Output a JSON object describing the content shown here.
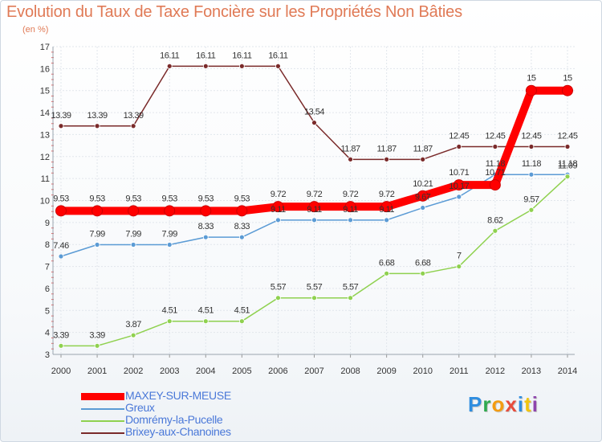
{
  "chart_data": {
    "type": "line",
    "title": "Evolution du Taux de Taxe Foncière sur les Propriétés Non Bâties",
    "ylabel": "(en %)",
    "xlabel": "",
    "ylim": [
      3,
      17
    ],
    "y_ticks": [
      "3",
      "4",
      "5",
      "6",
      "7",
      "8",
      "9",
      "10",
      "11",
      "12",
      "13",
      "14",
      "15",
      "16",
      "17"
    ],
    "categories": [
      "2000",
      "2001",
      "2002",
      "2003",
      "2004",
      "2005",
      "2006",
      "2007",
      "2008",
      "2009",
      "2010",
      "2011",
      "2012",
      "2013",
      "2014"
    ],
    "grid": true,
    "legend_position": "bottom-left",
    "series": [
      {
        "name": "Brixey-aux-Chanoines",
        "color": "#7a2a2a",
        "thick": false,
        "values": [
          13.39,
          13.39,
          13.39,
          16.11,
          16.11,
          16.11,
          16.11,
          13.54,
          11.87,
          11.87,
          11.87,
          12.45,
          12.45,
          12.45,
          12.45
        ],
        "labels": [
          "13.39",
          "13.39",
          "13.39",
          "16.11",
          "16.11",
          "16.11",
          "16.11",
          "13.54",
          "11.87",
          "11.87",
          "11.87",
          "12.45",
          "12.45",
          "12.45",
          "12.45"
        ]
      },
      {
        "name": "Greux",
        "color": "#5b9bd5",
        "thick": false,
        "values": [
          7.46,
          7.99,
          7.99,
          7.99,
          8.33,
          8.33,
          9.11,
          9.11,
          9.11,
          9.11,
          9.67,
          10.17,
          11.18,
          11.18,
          11.18
        ],
        "labels": [
          "7.46",
          "7.99",
          "7.99",
          "7.99",
          "8.33",
          "8.33",
          "9.11",
          "9.11",
          "9.11",
          "9.11",
          "9.67",
          "10.17",
          "11.18",
          "11.18",
          "11.18"
        ]
      },
      {
        "name": "Domrémy-la-Pucelle",
        "color": "#8fd14f",
        "thick": false,
        "values": [
          3.39,
          3.39,
          3.87,
          4.51,
          4.51,
          4.51,
          5.57,
          5.57,
          5.57,
          6.68,
          6.68,
          7,
          8.62,
          9.57,
          11.09
        ],
        "labels": [
          "3.39",
          "3.39",
          "3.87",
          "4.51",
          "4.51",
          "4.51",
          "5.57",
          "5.57",
          "5.57",
          "6.68",
          "6.68",
          "7",
          "8.62",
          "9.57",
          "11.09"
        ]
      },
      {
        "name": "MAXEY-SUR-MEUSE",
        "color": "#ff0000",
        "thick": true,
        "values": [
          9.53,
          9.53,
          9.53,
          9.53,
          9.53,
          9.53,
          9.72,
          9.72,
          9.72,
          9.72,
          10.21,
          10.71,
          10.71,
          15,
          15
        ],
        "labels": [
          "9.53",
          "9.53",
          "9.53",
          "9.53",
          "9.53",
          "9.53",
          "9.72",
          "9.72",
          "9.72",
          "9.72",
          "10.21",
          "10.71",
          "10.71",
          "15",
          "15"
        ]
      }
    ],
    "legend_order": [
      "MAXEY-SUR-MEUSE",
      "Greux",
      "Domrémy-la-Pucelle",
      "Brixey-aux-Chanoines"
    ]
  },
  "logo": {
    "letters": [
      "P",
      "r",
      "o",
      "x",
      "i",
      "t",
      "i"
    ],
    "colors": [
      "#2e8de0",
      "#2eaa4e",
      "#f39c12",
      "#e74c3c",
      "#2e8de0",
      "#f1c40f",
      "#8e44ad"
    ]
  }
}
